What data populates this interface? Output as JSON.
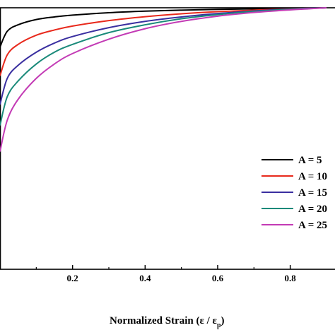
{
  "chart_data": {
    "type": "line",
    "xlabel_main": "Normalized Strain (ε / ε",
    "xlabel_sub": "p",
    "xlabel_close": ")",
    "xlim": [
      0,
      0.9
    ],
    "ylim": [
      0,
      1
    ],
    "x_ticks": [
      0.2,
      0.4,
      0.6,
      0.8
    ],
    "x_tick_labels": [
      "0.2",
      "0.4",
      "0.6",
      "0.8"
    ],
    "x": [
      0.0,
      0.02,
      0.05,
      0.1,
      0.15,
      0.2,
      0.3,
      0.4,
      0.5,
      0.6,
      0.7,
      0.8,
      0.85,
      0.9
    ],
    "series": [
      {
        "name": "A = 5",
        "color": "#000000",
        "values": [
          0.85,
          0.91,
          0.935,
          0.955,
          0.965,
          0.972,
          0.981,
          0.987,
          0.991,
          0.994,
          0.996,
          0.998,
          0.999,
          1.0
        ]
      },
      {
        "name": "A = 10",
        "color": "#e8291c",
        "values": [
          0.74,
          0.82,
          0.86,
          0.895,
          0.915,
          0.93,
          0.951,
          0.966,
          0.977,
          0.985,
          0.991,
          0.996,
          0.998,
          1.0
        ]
      },
      {
        "name": "A = 15",
        "color": "#3a2fa0",
        "values": [
          0.63,
          0.73,
          0.78,
          0.83,
          0.865,
          0.89,
          0.924,
          0.948,
          0.965,
          0.978,
          0.988,
          0.995,
          0.998,
          1.0
        ]
      },
      {
        "name": "A = 20",
        "color": "#1a8a7a",
        "values": [
          0.55,
          0.66,
          0.72,
          0.785,
          0.83,
          0.86,
          0.905,
          0.935,
          0.958,
          0.974,
          0.986,
          0.994,
          0.997,
          1.0
        ]
      },
      {
        "name": "A = 25",
        "color": "#c33bb5",
        "values": [
          0.45,
          0.57,
          0.65,
          0.73,
          0.785,
          0.825,
          0.88,
          0.92,
          0.948,
          0.968,
          0.982,
          0.992,
          0.996,
          1.0
        ]
      }
    ],
    "legend_labels": [
      "A = 5",
      "A = 10",
      "A = 15",
      "A = 20",
      "A = 25"
    ],
    "legend_placement": "right"
  }
}
